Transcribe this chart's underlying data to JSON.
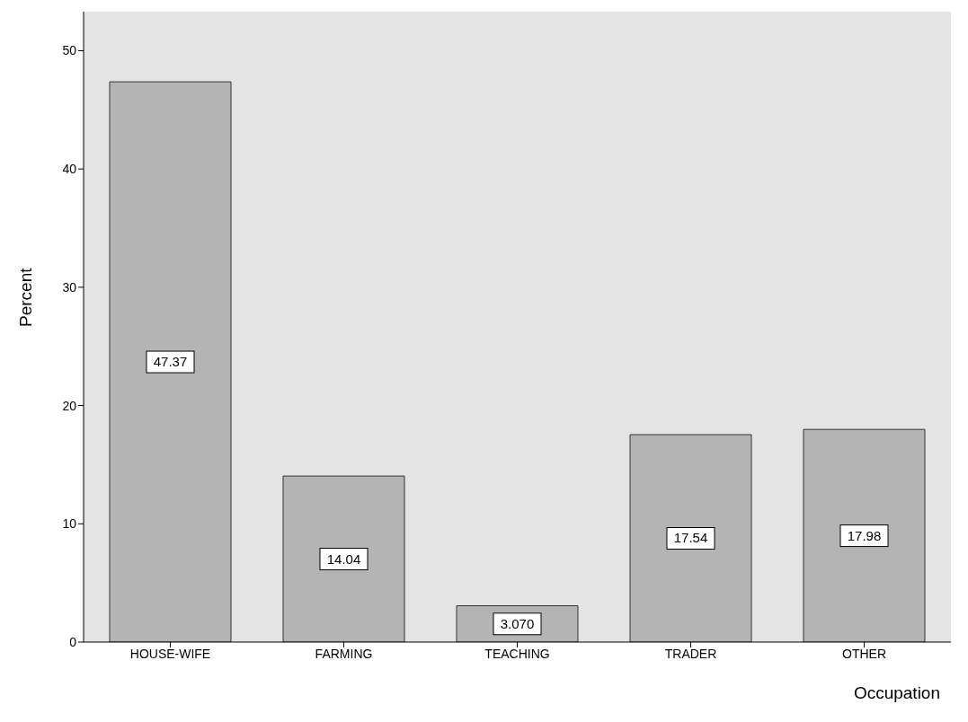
{
  "chart_data": {
    "type": "bar",
    "xlabel": "Occupation",
    "ylabel": "Percent",
    "categories": [
      "HOUSE-WIFE",
      "FARMING",
      "TEACHING",
      "TRADER",
      "OTHER"
    ],
    "values": [
      47.37,
      14.04,
      3.07,
      17.54,
      17.98
    ],
    "value_labels": [
      "47.37",
      "14.04",
      "3.070",
      "17.54",
      "17.98"
    ],
    "color": "#b4b4b4",
    "ylim": [
      0,
      53.3
    ],
    "yticks": [
      0,
      10,
      20,
      30,
      40,
      50
    ],
    "grid": false,
    "legend": false
  }
}
